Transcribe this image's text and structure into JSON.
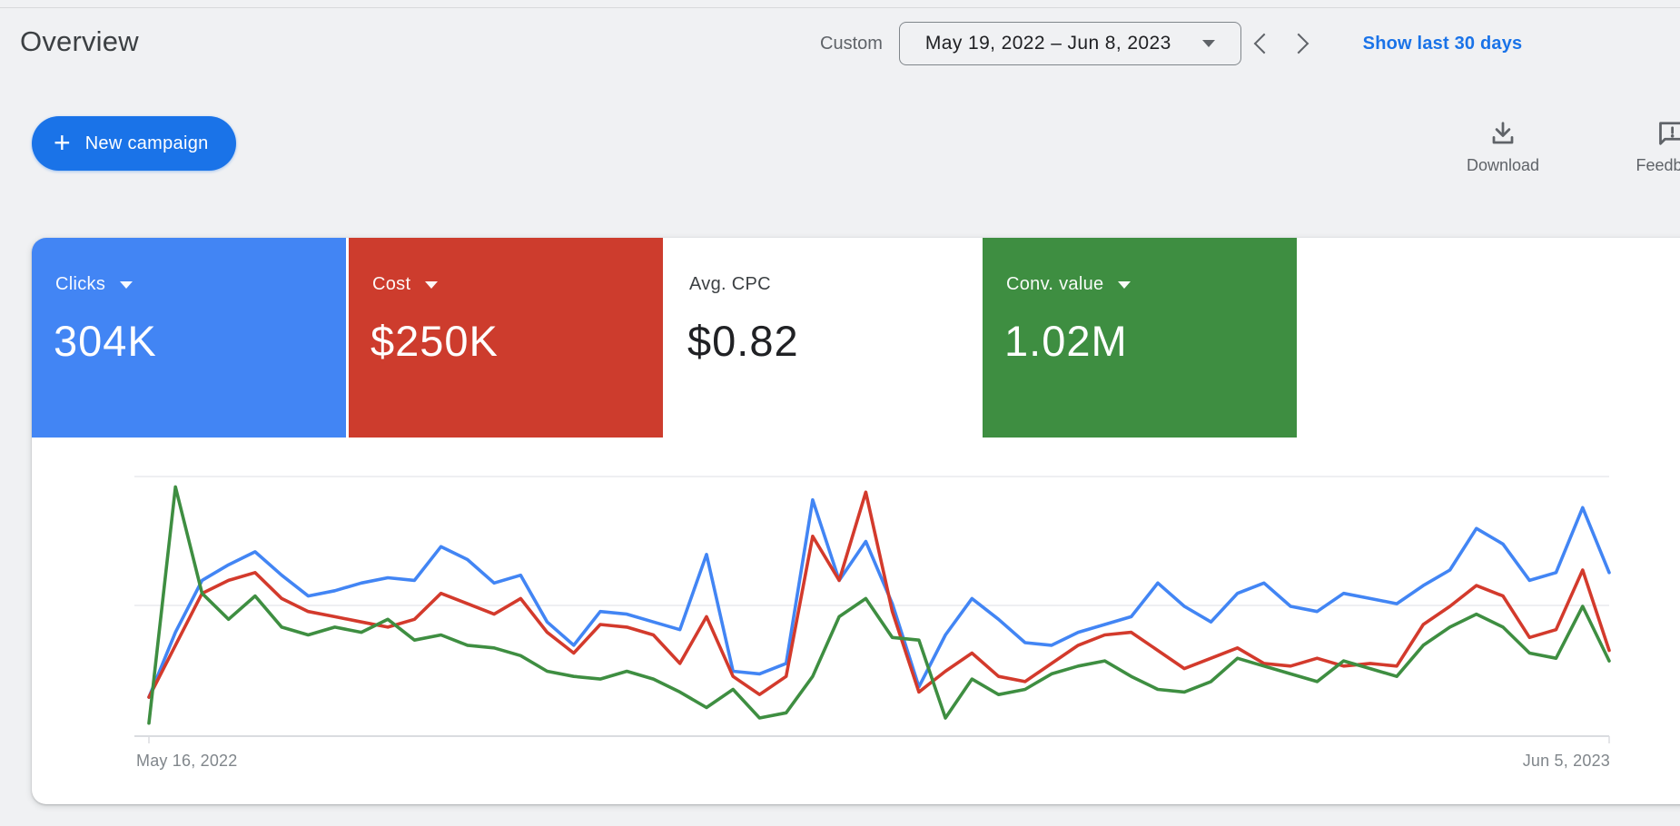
{
  "header": {
    "title": "Overview",
    "range_label": "Custom",
    "date_range": "May 19, 2022 – Jun 8, 2023",
    "show_last_link": "Show last 30 days"
  },
  "toolbar": {
    "plus_icon": "+",
    "new_campaign_label": "New campaign",
    "download_label": "Download",
    "feedback_label": "Feedback"
  },
  "scorecards": [
    {
      "label": "Clicks",
      "value": "304K",
      "has_dropdown": true,
      "bg": "#4285f4",
      "fg": "#ffffff"
    },
    {
      "label": "Cost",
      "value": "$250K",
      "has_dropdown": true,
      "bg": "#cd3c2d",
      "fg": "#ffffff"
    },
    {
      "label": "Avg. CPC",
      "value": "$0.82",
      "has_dropdown": false,
      "bg": "#ffffff",
      "fg": "#202124"
    },
    {
      "label": "Conv. value",
      "value": "1.02M",
      "has_dropdown": true,
      "bg": "#3e8e41",
      "fg": "#ffffff"
    }
  ],
  "chart_data": {
    "type": "line",
    "title": "",
    "x_start_label": "May 16, 2022",
    "x_end_label": "Jun 5, 2023",
    "x_unit": "week",
    "n_points": 56,
    "ylim": [
      0,
      100
    ],
    "y_scale": "relative-percent (chart shows no y-axis tick labels)",
    "grid": true,
    "legend_position": "none (colors match scorecards)",
    "series": [
      {
        "name": "Clicks",
        "color": "#4285f4",
        "values": [
          15,
          40,
          60,
          66,
          71,
          62,
          54,
          56,
          59,
          61,
          60,
          73,
          68,
          59,
          62,
          44,
          35,
          48,
          47,
          44,
          41,
          70,
          25,
          24,
          28,
          91,
          60,
          75,
          51,
          19,
          39,
          53,
          45,
          36,
          35,
          40,
          43,
          46,
          59,
          50,
          44,
          55,
          59,
          50,
          48,
          55,
          53,
          51,
          58,
          64,
          80,
          74,
          60,
          63,
          88,
          63
        ]
      },
      {
        "name": "Cost",
        "color": "#d33a2c",
        "values": [
          15,
          35,
          55,
          60,
          63,
          53,
          48,
          46,
          44,
          42,
          45,
          55,
          51,
          47,
          53,
          40,
          32,
          43,
          42,
          39,
          28,
          46,
          23,
          16,
          23,
          77,
          60,
          94,
          48,
          17,
          25,
          32,
          23,
          21,
          28,
          35,
          39,
          40,
          33,
          26,
          30,
          34,
          28,
          27,
          30,
          27,
          28,
          27,
          43,
          50,
          58,
          54,
          38,
          41,
          64,
          33
        ]
      },
      {
        "name": "Conv. value",
        "color": "#3e8e41",
        "values": [
          5,
          96,
          55,
          45,
          54,
          42,
          39,
          42,
          40,
          45,
          37,
          39,
          35,
          34,
          31,
          25,
          23,
          22,
          25,
          22,
          17,
          11,
          18,
          7,
          9,
          23,
          46,
          53,
          38,
          37,
          7,
          22,
          16,
          18,
          24,
          27,
          29,
          23,
          18,
          17,
          21,
          30,
          27,
          24,
          21,
          29,
          26,
          23,
          35,
          42,
          47,
          42,
          32,
          30,
          50,
          29
        ]
      }
    ]
  }
}
